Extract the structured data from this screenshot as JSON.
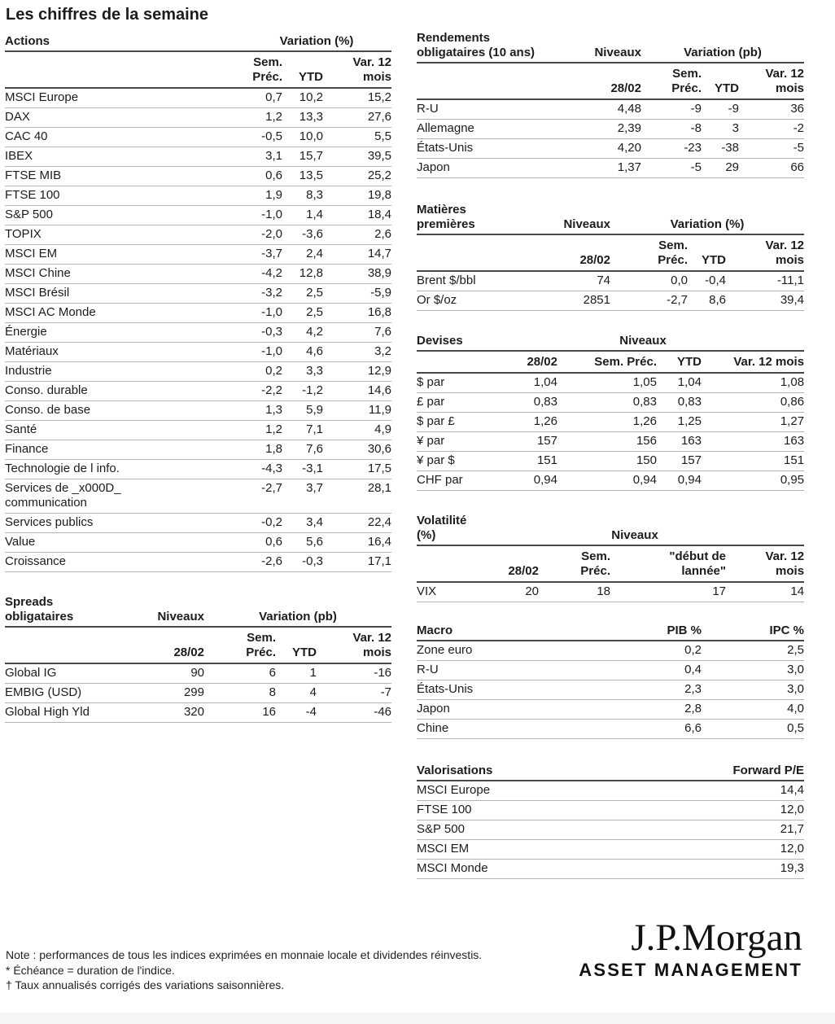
{
  "title": "Les chiffres de la semaine",
  "tables": {
    "actions": {
      "section": "Actions",
      "group_headers": {
        "variation": "Variation (%)"
      },
      "col_headers": [
        "Sem.\nPréc.",
        "YTD",
        "Var. 12\nmois"
      ],
      "rows": [
        {
          "label": "MSCI Europe",
          "values": [
            "0,7",
            "10,2",
            "15,2"
          ]
        },
        {
          "label": "DAX",
          "values": [
            "1,2",
            "13,3",
            "27,6"
          ]
        },
        {
          "label": "CAC 40",
          "values": [
            "-0,5",
            "10,0",
            "5,5"
          ]
        },
        {
          "label": "IBEX",
          "values": [
            "3,1",
            "15,7",
            "39,5"
          ]
        },
        {
          "label": "FTSE MIB",
          "values": [
            "0,6",
            "13,5",
            "25,2"
          ]
        },
        {
          "label": "FTSE 100",
          "values": [
            "1,9",
            "8,3",
            "19,8"
          ]
        },
        {
          "label": "S&P 500",
          "values": [
            "-1,0",
            "1,4",
            "18,4"
          ]
        },
        {
          "label": "TOPIX",
          "values": [
            "-2,0",
            "-3,6",
            "2,6"
          ]
        },
        {
          "label": "MSCI EM",
          "values": [
            "-3,7",
            "2,4",
            "14,7"
          ]
        },
        {
          "label": "MSCI Chine",
          "values": [
            "-4,2",
            "12,8",
            "38,9"
          ]
        },
        {
          "label": "MSCI Brésil",
          "values": [
            "-3,2",
            "2,5",
            "-5,9"
          ]
        },
        {
          "label": "MSCI AC Monde",
          "values": [
            "-1,0",
            "2,5",
            "16,8"
          ]
        },
        {
          "label": "Énergie",
          "values": [
            "-0,3",
            "4,2",
            "7,6"
          ]
        },
        {
          "label": "Matériaux",
          "values": [
            "-1,0",
            "4,6",
            "3,2"
          ]
        },
        {
          "label": "Industrie",
          "values": [
            "0,2",
            "3,3",
            "12,9"
          ]
        },
        {
          "label": "Conso. durable",
          "values": [
            "-2,2",
            "-1,2",
            "14,6"
          ]
        },
        {
          "label": "Conso. de base",
          "values": [
            "1,3",
            "5,9",
            "11,9"
          ]
        },
        {
          "label": "Santé",
          "values": [
            "1,2",
            "7,1",
            "4,9"
          ]
        },
        {
          "label": "Finance",
          "values": [
            "1,8",
            "7,6",
            "30,6"
          ]
        },
        {
          "label": "Technologie de l info.",
          "values": [
            "-4,3",
            "-3,1",
            "17,5"
          ]
        },
        {
          "label": "Services de _x000D_\ncommunication",
          "values": [
            "-2,7",
            "3,7",
            "28,1"
          ]
        },
        {
          "label": "Services publics",
          "values": [
            "-0,2",
            "3,4",
            "22,4"
          ]
        },
        {
          "label": "Value",
          "values": [
            "0,6",
            "5,6",
            "16,4"
          ]
        },
        {
          "label": "Croissance",
          "values": [
            "-2,6",
            "-0,3",
            "17,1"
          ]
        }
      ]
    },
    "spreads": {
      "section": "Spreads\nobligataires",
      "group_headers": {
        "niveaux": "Niveaux",
        "variation": "Variation (pb)"
      },
      "col_headers": [
        "28/02",
        "Sem.\nPréc.",
        "YTD",
        "Var. 12\nmois"
      ],
      "rows": [
        {
          "label": "Global IG",
          "values": [
            "90",
            "6",
            "1",
            "-16"
          ]
        },
        {
          "label": "EMBIG (USD)",
          "values": [
            "299",
            "8",
            "4",
            "-7"
          ]
        },
        {
          "label": "Global High Yld",
          "values": [
            "320",
            "16",
            "-4",
            "-46"
          ]
        }
      ]
    },
    "rendements": {
      "section": "Rendements\nobligataires (10 ans)",
      "group_headers": {
        "niveaux": "Niveaux",
        "variation": "Variation (pb)"
      },
      "col_headers": [
        "28/02",
        "Sem.\nPréc.",
        "YTD",
        "Var. 12\nmois"
      ],
      "rows": [
        {
          "label": "R-U",
          "values": [
            "4,48",
            "-9",
            "-9",
            "36"
          ]
        },
        {
          "label": "Allemagne",
          "values": [
            "2,39",
            "-8",
            "3",
            "-2"
          ]
        },
        {
          "label": "États-Unis",
          "values": [
            "4,20",
            "-23",
            "-38",
            "-5"
          ]
        },
        {
          "label": "Japon",
          "values": [
            "1,37",
            "-5",
            "29",
            "66"
          ]
        }
      ]
    },
    "matieres": {
      "section": "Matières\npremières",
      "group_headers": {
        "niveaux": "Niveaux",
        "variation": "Variation (%)"
      },
      "col_headers": [
        "28/02",
        "Sem.\nPréc.",
        "YTD",
        "Var. 12\nmois"
      ],
      "rows": [
        {
          "label": "Brent $/bbl",
          "values": [
            "74",
            "0,0",
            "-0,4",
            "-11,1"
          ]
        },
        {
          "label": "Or $/oz",
          "values": [
            "2851",
            "-2,7",
            "8,6",
            "39,4"
          ]
        }
      ]
    },
    "devises": {
      "section": "Devises",
      "group_headers": {
        "niveaux": "Niveaux"
      },
      "col_headers": [
        "28/02",
        "Sem. Préc.",
        "YTD",
        "Var. 12 mois"
      ],
      "rows": [
        {
          "label": "$ par",
          "values": [
            "1,04",
            "1,05",
            "1,04",
            "1,08"
          ]
        },
        {
          "label": "£ par",
          "values": [
            "0,83",
            "0,83",
            "0,83",
            "0,86"
          ]
        },
        {
          "label": "$ par £",
          "values": [
            "1,26",
            "1,26",
            "1,25",
            "1,27"
          ]
        },
        {
          "label": "¥ par",
          "values": [
            "157",
            "156",
            "163",
            "163"
          ]
        },
        {
          "label": "¥ par $",
          "values": [
            "151",
            "150",
            "157",
            "151"
          ]
        },
        {
          "label": "CHF par",
          "values": [
            "0,94",
            "0,94",
            "0,94",
            "0,95"
          ]
        }
      ]
    },
    "volatilite": {
      "section": "Volatilité\n(%)",
      "group_headers": {
        "niveaux": "Niveaux"
      },
      "col_headers": [
        "28/02",
        "Sem.\nPréc.",
        "\"début de\nlannée\"",
        "Var. 12\nmois"
      ],
      "rows": [
        {
          "label": "VIX",
          "values": [
            "20",
            "18",
            "17",
            "14"
          ]
        }
      ]
    },
    "macro": {
      "section": "Macro",
      "col_headers": [
        "PIB %",
        "IPC %"
      ],
      "rows": [
        {
          "label": "Zone euro",
          "values": [
            "0,2",
            "2,5"
          ]
        },
        {
          "label": "R-U",
          "values": [
            "0,4",
            "3,0"
          ]
        },
        {
          "label": "États-Unis",
          "values": [
            "2,3",
            "3,0"
          ]
        },
        {
          "label": "Japon",
          "values": [
            "2,8",
            "4,0"
          ]
        },
        {
          "label": "Chine",
          "values": [
            "6,6",
            "0,5"
          ]
        }
      ]
    },
    "valorisations": {
      "section": "Valorisations",
      "col_headers": [
        "Forward P/E"
      ],
      "rows": [
        {
          "label": "MSCI Europe",
          "values": [
            "14,4"
          ]
        },
        {
          "label": "FTSE 100",
          "values": [
            "12,0"
          ]
        },
        {
          "label": "S&P 500",
          "values": [
            "21,7"
          ]
        },
        {
          "label": "MSCI EM",
          "values": [
            "12,0"
          ]
        },
        {
          "label": "MSCI Monde",
          "values": [
            "19,3"
          ]
        }
      ]
    }
  },
  "notes": [
    "Note : performances de tous les indices exprimées en monnaie locale et dividendes réinvestis.",
    "* Échéance = duration de l'indice.",
    "† Taux annualisés corrigés des variations saisonnières."
  ],
  "logo": {
    "brand": "J.P.Morgan",
    "division": "ASSET MANAGEMENT"
  },
  "colors": {
    "text": "#1c1c1c",
    "rule_dark": "#474747",
    "rule_light": "#b3b3b3",
    "footer_bar": "#f6f6f6"
  }
}
